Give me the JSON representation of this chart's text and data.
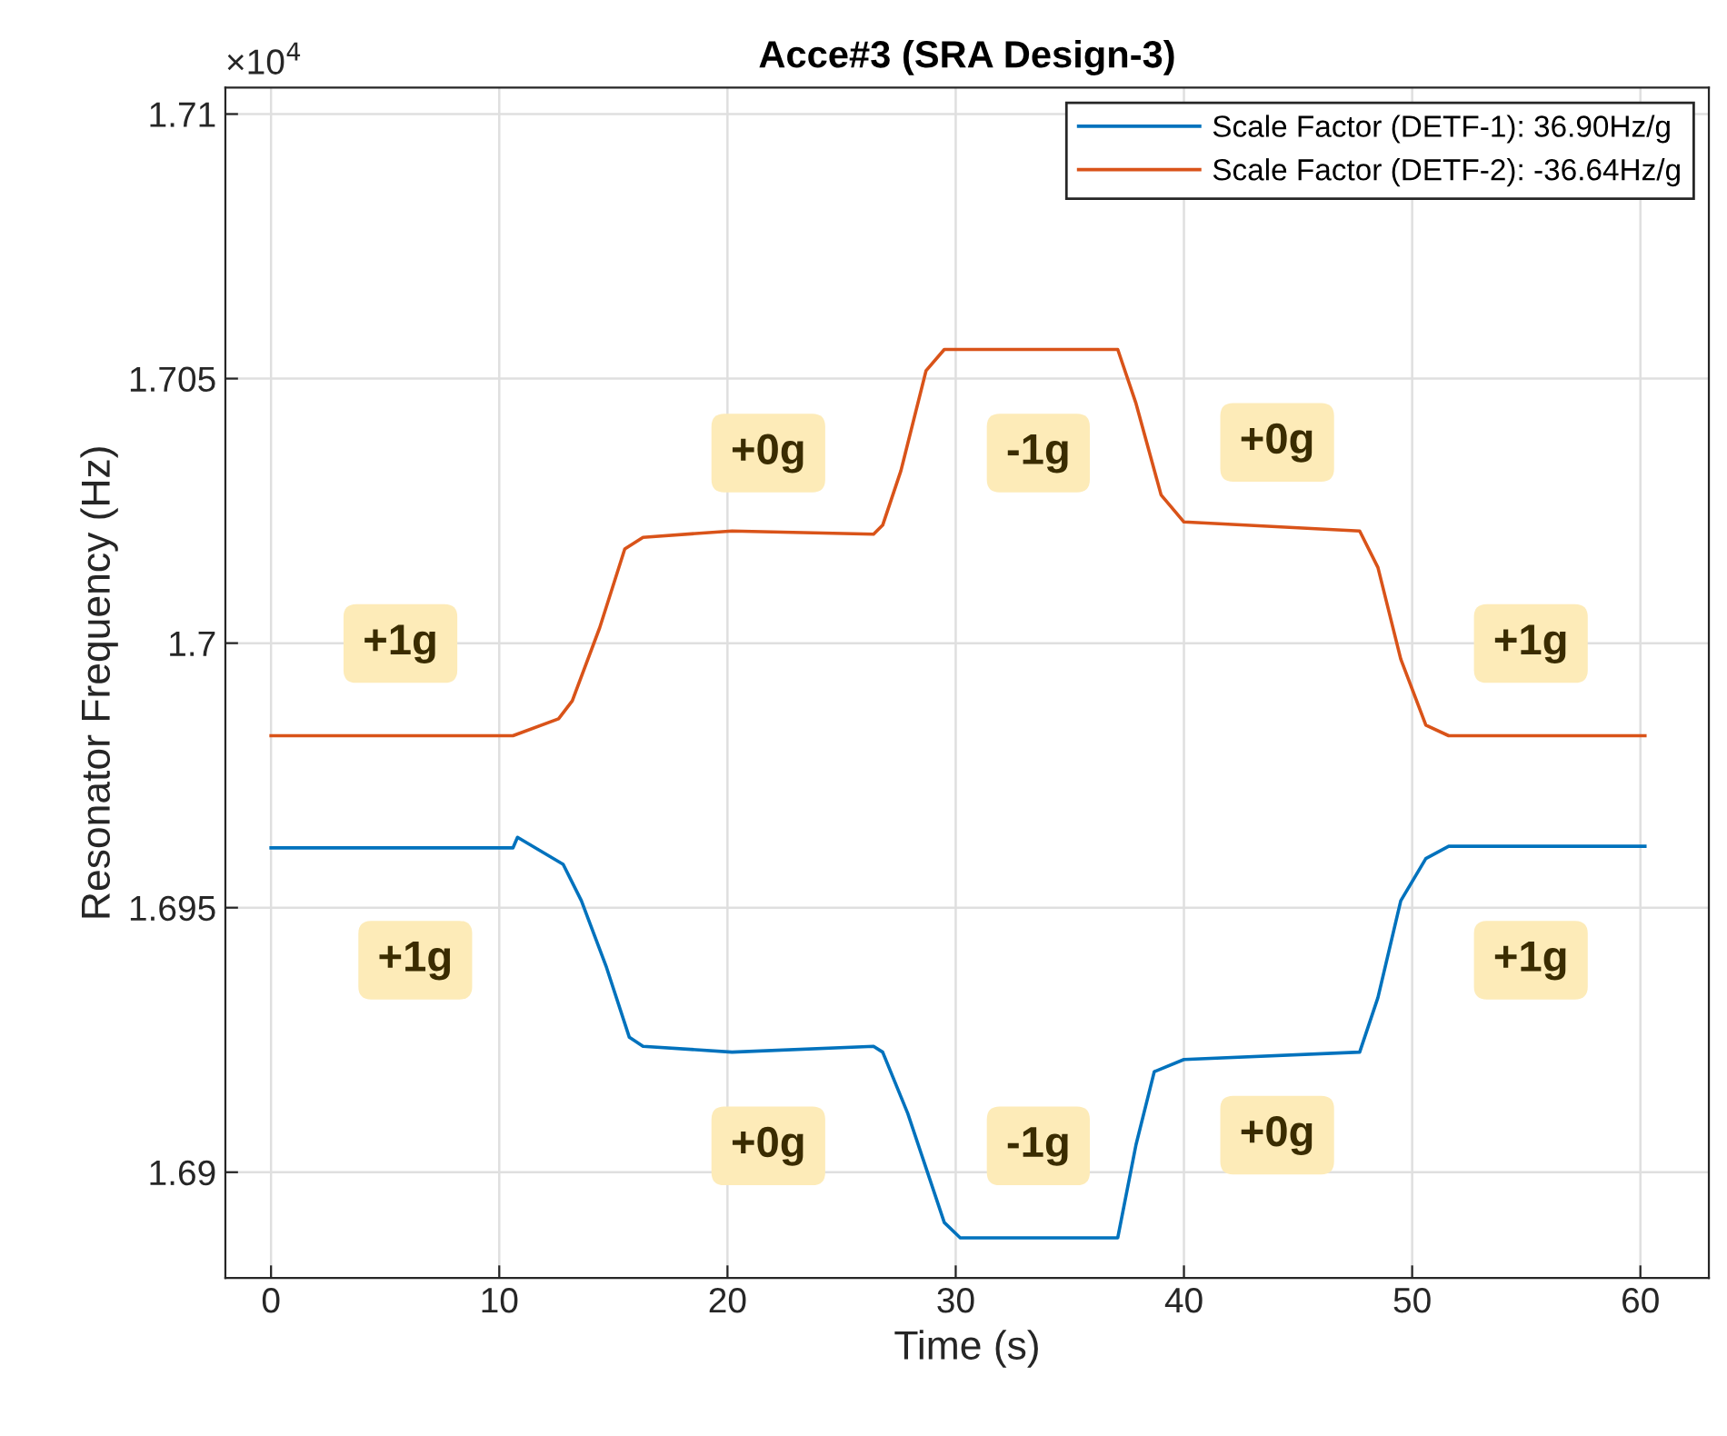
{
  "chart_data": {
    "type": "line",
    "title": "Acce#3 (SRA Design-3)",
    "xlabel": "Time (s)",
    "ylabel": "Resonator Frequency (Hz)",
    "xlim": [
      -2,
      63
    ],
    "xticks": [
      0,
      10,
      20,
      30,
      40,
      50,
      60
    ],
    "ylim": [
      1.688,
      1.7105
    ],
    "yticks": [
      1.69,
      1.695,
      1.7,
      1.705,
      1.71
    ],
    "grid": true,
    "legend": "top right",
    "line_style": "solid",
    "marker": "none",
    "series": [
      {
        "name": "Scale Factor (DETF-1): 36.90Hz/g",
        "color": "#0072bd",
        "x": [
          0,
          10.6,
          10.8,
          12.8,
          13.6,
          14.7,
          15.7,
          16.3,
          20.2,
          26.4,
          26.8,
          27.9,
          29.5,
          30.2,
          37.1,
          37.9,
          38.7,
          40.0,
          47.7,
          48.5,
          49.5,
          50.6,
          51.6,
          60.2
        ],
        "values": [
          1.69613,
          1.69613,
          1.69633,
          1.69582,
          1.69513,
          1.69387,
          1.69255,
          1.69238,
          1.69227,
          1.69238,
          1.69227,
          1.69111,
          1.68905,
          1.68876,
          1.68876,
          1.69052,
          1.6919,
          1.69213,
          1.69227,
          1.6933,
          1.69513,
          1.69593,
          1.69616,
          1.69616
        ]
      },
      {
        "name": "Scale Factor (DETF-2): -36.64Hz/g",
        "color": "#d95319",
        "x": [
          0,
          10.6,
          12.6,
          13.2,
          14.4,
          15.5,
          16.3,
          20.2,
          26.4,
          26.8,
          27.6,
          28.7,
          29.5,
          37.1,
          37.9,
          39.0,
          40.0,
          47.7,
          48.5,
          49.5,
          50.6,
          51.6,
          60.2
        ],
        "values": [
          1.69825,
          1.69825,
          1.69857,
          1.69891,
          1.70029,
          1.70178,
          1.702,
          1.70212,
          1.70206,
          1.70223,
          1.70326,
          1.70515,
          1.70555,
          1.70555,
          1.70453,
          1.7028,
          1.70229,
          1.70212,
          1.70143,
          1.6997,
          1.69845,
          1.69825,
          1.69825
        ]
      }
    ],
    "annotations": [
      "×10$^{4}$",
      "+1g",
      "+0g",
      "-1g",
      "+0g",
      "+1g",
      "+1g",
      "+0g",
      "-1g",
      "+0g",
      "+1g"
    ]
  }
}
